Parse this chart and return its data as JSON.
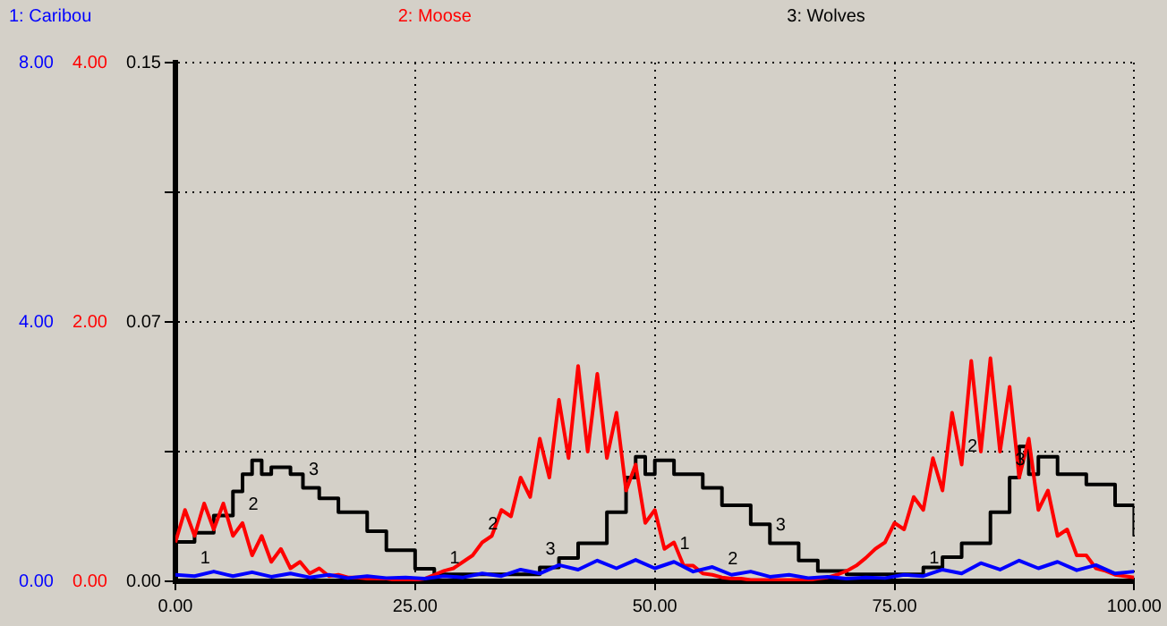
{
  "chart_data": {
    "type": "line",
    "xlim": [
      0,
      100
    ],
    "xticks": [
      {
        "value": 0,
        "label": "0.00"
      },
      {
        "value": 25,
        "label": "25.00"
      },
      {
        "value": 50,
        "label": "50.00"
      },
      {
        "value": 75,
        "label": "75.00"
      },
      {
        "value": 100,
        "label": "100.00"
      }
    ],
    "ylim": [
      0,
      8
    ],
    "yticks": [
      {
        "value": 0,
        "label": "0.00"
      },
      {
        "value": 2,
        "label": null
      },
      {
        "value": 4,
        "label": "4.00"
      },
      {
        "value": 6,
        "label": null
      },
      {
        "value": 8,
        "label": "8.00"
      }
    ],
    "y2lim": [
      0,
      4
    ],
    "y2ticks": [
      {
        "value": 0,
        "label": "0.00"
      },
      {
        "value": 1,
        "label": null
      },
      {
        "value": 2,
        "label": "2.00"
      },
      {
        "value": 3,
        "label": null
      },
      {
        "value": 4,
        "label": "4.00"
      }
    ],
    "y3lim": [
      0,
      0.15
    ],
    "y3ticks": [
      {
        "value": 0,
        "label": "0.00"
      },
      {
        "value": 0.0375,
        "label": null
      },
      {
        "value": 0.075,
        "label": "0.07"
      },
      {
        "value": 0.1125,
        "label": null
      },
      {
        "value": 0.15,
        "label": "0.15"
      }
    ],
    "grid": true,
    "legend": "top",
    "series": [
      {
        "name": "1: Caribou",
        "color": "#0000ff",
        "axis": "y",
        "type": "line",
        "x": [
          0,
          2,
          4,
          6,
          8,
          10,
          12,
          14,
          16,
          18,
          20,
          22,
          24,
          26,
          28,
          30,
          32,
          34,
          36,
          38,
          40,
          42,
          44,
          46,
          48,
          50,
          52,
          54,
          56,
          58,
          60,
          62,
          64,
          66,
          68,
          70,
          72,
          74,
          76,
          78,
          80,
          82,
          84,
          86,
          88,
          90,
          92,
          94,
          96,
          98,
          100
        ],
        "values": [
          0.1,
          0.08,
          0.15,
          0.08,
          0.14,
          0.07,
          0.12,
          0.06,
          0.1,
          0.05,
          0.08,
          0.05,
          0.06,
          0.04,
          0.08,
          0.06,
          0.12,
          0.08,
          0.18,
          0.12,
          0.25,
          0.18,
          0.32,
          0.2,
          0.33,
          0.2,
          0.3,
          0.15,
          0.22,
          0.1,
          0.15,
          0.07,
          0.1,
          0.05,
          0.07,
          0.04,
          0.06,
          0.05,
          0.1,
          0.08,
          0.18,
          0.12,
          0.28,
          0.18,
          0.32,
          0.2,
          0.3,
          0.17,
          0.25,
          0.12,
          0.15
        ]
      },
      {
        "name": "2: Moose",
        "color": "#ff0000",
        "axis": "y2",
        "type": "line",
        "x": [
          0,
          1,
          2,
          3,
          4,
          5,
          6,
          7,
          8,
          9,
          10,
          11,
          12,
          13,
          14,
          15,
          16,
          17,
          18,
          19,
          20,
          21,
          22,
          23,
          24,
          25,
          26,
          27,
          28,
          29,
          30,
          31,
          32,
          33,
          34,
          35,
          36,
          37,
          38,
          39,
          40,
          41,
          42,
          43,
          44,
          45,
          46,
          47,
          48,
          49,
          50,
          51,
          52,
          53,
          54,
          55,
          56,
          57,
          58,
          59,
          60,
          61,
          62,
          63,
          64,
          65,
          66,
          67,
          68,
          69,
          70,
          71,
          72,
          73,
          74,
          75,
          76,
          77,
          78,
          79,
          80,
          81,
          82,
          83,
          84,
          85,
          86,
          87,
          88,
          89,
          90,
          91,
          92,
          93,
          94,
          95,
          96,
          97,
          98,
          99,
          100
        ],
        "values": [
          0.3,
          0.55,
          0.35,
          0.6,
          0.4,
          0.6,
          0.35,
          0.45,
          0.2,
          0.35,
          0.15,
          0.25,
          0.1,
          0.15,
          0.06,
          0.1,
          0.04,
          0.05,
          0.03,
          0.03,
          0.02,
          0.02,
          0.02,
          0.01,
          0.01,
          0.01,
          0.02,
          0.05,
          0.08,
          0.1,
          0.15,
          0.2,
          0.3,
          0.35,
          0.55,
          0.5,
          0.8,
          0.65,
          1.1,
          0.8,
          1.4,
          0.95,
          1.66,
          1.0,
          1.6,
          0.95,
          1.3,
          0.7,
          0.9,
          0.45,
          0.55,
          0.25,
          0.3,
          0.12,
          0.12,
          0.06,
          0.05,
          0.03,
          0.02,
          0.02,
          0.01,
          0.01,
          0.01,
          0.01,
          0.01,
          0.01,
          0.01,
          0.02,
          0.03,
          0.05,
          0.08,
          0.12,
          0.18,
          0.25,
          0.3,
          0.45,
          0.4,
          0.65,
          0.55,
          0.95,
          0.7,
          1.3,
          0.9,
          1.7,
          1.0,
          1.72,
          1.0,
          1.5,
          0.8,
          1.1,
          0.55,
          0.7,
          0.35,
          0.4,
          0.2,
          0.2,
          0.1,
          0.08,
          0.05,
          0.04,
          0.03
        ]
      },
      {
        "name": "3: Wolves",
        "color": "#000000",
        "axis": "y3",
        "type": "step",
        "x": [
          0,
          2,
          4,
          6,
          7,
          8,
          9,
          10,
          12,
          13.3,
          15,
          17,
          20,
          22,
          25,
          27,
          30,
          35,
          38,
          40,
          42,
          45,
          47,
          48,
          49,
          50,
          52,
          55,
          57,
          60,
          62,
          65,
          67,
          70,
          75,
          78,
          80,
          82,
          85,
          87,
          88,
          89,
          90,
          92,
          95,
          98,
          100
        ],
        "values": [
          0.0114,
          0.014,
          0.019,
          0.026,
          0.031,
          0.035,
          0.031,
          0.033,
          0.031,
          0.027,
          0.024,
          0.02,
          0.0145,
          0.009,
          0.0036,
          0.002,
          0.002,
          0.002,
          0.004,
          0.0067,
          0.011,
          0.02,
          0.03,
          0.036,
          0.031,
          0.035,
          0.031,
          0.027,
          0.022,
          0.0165,
          0.011,
          0.006,
          0.003,
          0.002,
          0.002,
          0.004,
          0.007,
          0.011,
          0.02,
          0.03,
          0.039,
          0.031,
          0.036,
          0.031,
          0.028,
          0.022,
          0.013
        ]
      }
    ],
    "annotations": [
      {
        "text": "1",
        "x": 2,
        "y": 0.08
      },
      {
        "text": "1",
        "x": 28,
        "y": 0.08
      },
      {
        "text": "1",
        "x": 52,
        "y": 0.3
      },
      {
        "text": "1",
        "x": 78,
        "y": 0.08
      },
      {
        "text": "2",
        "x": 7,
        "y": 0.9
      },
      {
        "text": "2",
        "x": 32,
        "y": 0.6
      },
      {
        "text": "2",
        "x": 57,
        "y": 0.06
      },
      {
        "text": "2",
        "x": 82,
        "y": 1.8
      },
      {
        "text": "3",
        "x": 13.3,
        "y": 1.44
      },
      {
        "text": "3",
        "x": 38,
        "y": 0.2133
      },
      {
        "text": "3",
        "x": 62,
        "y": 0.5867
      },
      {
        "text": "3",
        "x": 87,
        "y": 1.6
      }
    ]
  }
}
